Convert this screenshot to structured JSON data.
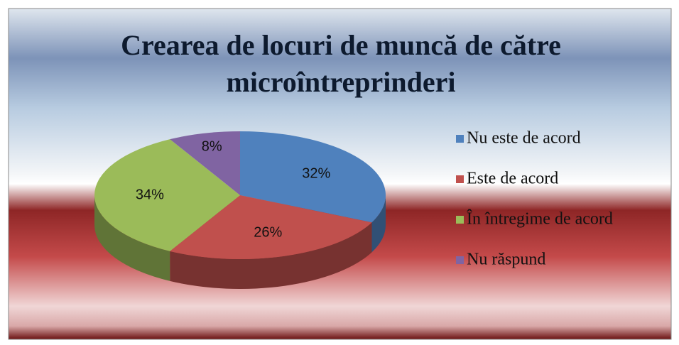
{
  "chart_data": {
    "type": "pie",
    "title": "Crearea de locuri de muncă de către microîntreprinderi",
    "categories": [
      "Nu este de acord",
      "Este de acord",
      "În întregime de acord",
      "Nu răspund"
    ],
    "values": [
      32,
      26,
      34,
      8
    ],
    "value_labels": [
      "32%",
      "26%",
      "34%",
      "8%"
    ],
    "colors": [
      "#4f81bd",
      "#c0504d",
      "#9bbb59",
      "#8064a2"
    ],
    "legend": "right"
  }
}
